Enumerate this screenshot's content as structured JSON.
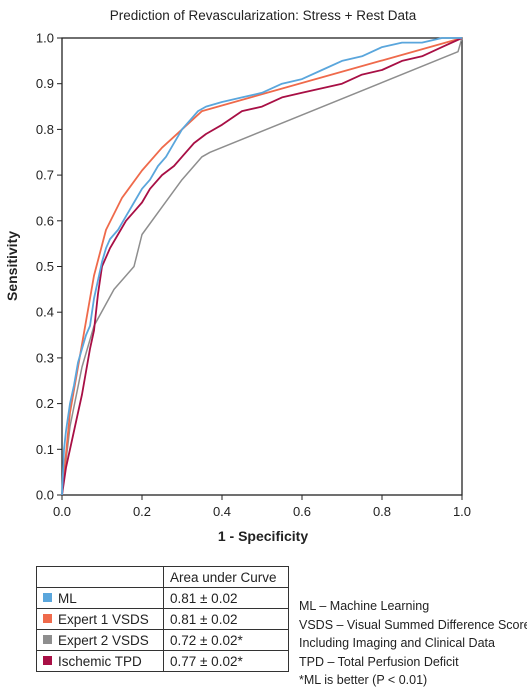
{
  "chart_data": {
    "type": "line",
    "title": "Prediction of Revascularization: Stress + Rest Data",
    "xlabel": "1 - Specificity",
    "ylabel": "Sensitivity",
    "xlim": [
      0,
      1
    ],
    "ylim": [
      0,
      1
    ],
    "xticks": [
      "0.0",
      "0.2",
      "0.4",
      "0.6",
      "0.8",
      "1.0"
    ],
    "yticks": [
      "0.0",
      "0.1",
      "0.2",
      "0.3",
      "0.4",
      "0.5",
      "0.6",
      "0.7",
      "0.8",
      "0.9",
      "1.0"
    ],
    "grid": false,
    "series": [
      {
        "name": "ML",
        "auc": "0.81 ± 0.02",
        "color": "#5aa6dc",
        "x": [
          0,
          0.005,
          0.01,
          0.015,
          0.02,
          0.03,
          0.04,
          0.05,
          0.06,
          0.07,
          0.08,
          0.09,
          0.1,
          0.11,
          0.12,
          0.14,
          0.16,
          0.18,
          0.2,
          0.22,
          0.24,
          0.26,
          0.28,
          0.3,
          0.32,
          0.34,
          0.36,
          0.4,
          0.45,
          0.5,
          0.55,
          0.6,
          0.65,
          0.7,
          0.75,
          0.8,
          0.85,
          0.9,
          0.95,
          0.98,
          1.0
        ],
        "y": [
          0,
          0.1,
          0.14,
          0.17,
          0.2,
          0.24,
          0.29,
          0.32,
          0.35,
          0.37,
          0.43,
          0.47,
          0.51,
          0.54,
          0.56,
          0.58,
          0.61,
          0.64,
          0.67,
          0.69,
          0.72,
          0.74,
          0.77,
          0.8,
          0.82,
          0.84,
          0.85,
          0.86,
          0.87,
          0.88,
          0.9,
          0.91,
          0.93,
          0.95,
          0.96,
          0.98,
          0.99,
          0.99,
          1.0,
          1.0,
          1.0
        ]
      },
      {
        "name": "Expert 1 VSDS",
        "auc": "0.81 ± 0.02",
        "color": "#ef6a4b",
        "x": [
          0,
          0.02,
          0.05,
          0.08,
          0.11,
          0.15,
          0.2,
          0.25,
          0.3,
          0.35,
          1.0
        ],
        "y": [
          0,
          0.18,
          0.33,
          0.48,
          0.58,
          0.65,
          0.71,
          0.76,
          0.8,
          0.84,
          1.0
        ]
      },
      {
        "name": "Expert 2 VSDS",
        "auc": "0.72 ± 0.02*",
        "color": "#8e8e8e",
        "x": [
          0,
          0.02,
          0.05,
          0.08,
          0.13,
          0.18,
          0.2,
          0.25,
          0.3,
          0.35,
          0.37,
          0.99,
          1.0
        ],
        "y": [
          0,
          0.15,
          0.28,
          0.37,
          0.45,
          0.5,
          0.57,
          0.63,
          0.69,
          0.74,
          0.75,
          0.97,
          1.0
        ]
      },
      {
        "name": "Ischemic TPD",
        "auc": "0.77 ± 0.02*",
        "color": "#a80f45",
        "x": [
          0,
          0.01,
          0.02,
          0.03,
          0.04,
          0.05,
          0.06,
          0.07,
          0.08,
          0.09,
          0.1,
          0.12,
          0.14,
          0.16,
          0.18,
          0.2,
          0.22,
          0.25,
          0.28,
          0.3,
          0.33,
          0.36,
          0.4,
          0.45,
          0.5,
          0.55,
          0.6,
          0.65,
          0.7,
          0.75,
          0.8,
          0.85,
          0.9,
          0.95,
          1.0
        ],
        "y": [
          0,
          0.06,
          0.1,
          0.14,
          0.18,
          0.22,
          0.27,
          0.32,
          0.36,
          0.44,
          0.5,
          0.54,
          0.57,
          0.6,
          0.62,
          0.64,
          0.67,
          0.7,
          0.72,
          0.74,
          0.77,
          0.79,
          0.81,
          0.84,
          0.85,
          0.87,
          0.88,
          0.89,
          0.9,
          0.92,
          0.93,
          0.95,
          0.96,
          0.98,
          1.0
        ]
      }
    ]
  },
  "legend": {
    "header": "Area under Curve"
  },
  "notes": [
    "ML – Machine Learning",
    "VSDS – Visual Summed Difference Score",
    "Including Imaging and Clinical Data",
    "TPD – Total Perfusion Deficit",
    "*ML is better (P < 0.01)"
  ]
}
